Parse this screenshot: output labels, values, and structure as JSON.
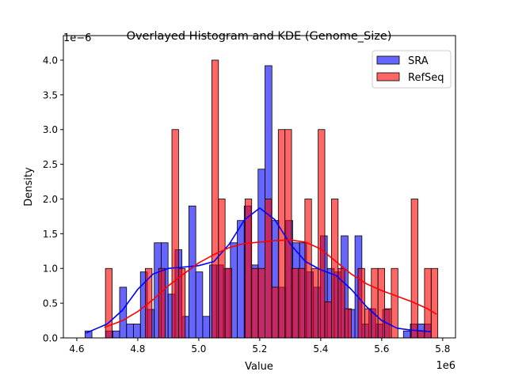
{
  "chart_data": {
    "type": "bar",
    "title": "Overlayed Histogram and KDE (Genome_Size)",
    "xlabel": "Value",
    "ylabel": "Density",
    "x_offset_label": "1e6",
    "y_offset_label": "1e−6",
    "xlim": [
      4.556,
      5.842
    ],
    "ylim": [
      0,
      4.353
    ],
    "xticks": [
      4.6,
      4.8,
      5.0,
      5.2,
      5.4,
      5.6,
      5.8
    ],
    "xtick_labels": [
      "4.6",
      "4.8",
      "5.0",
      "5.2",
      "5.4",
      "5.6",
      "5.8"
    ],
    "yticks": [
      0,
      0.5,
      1.0,
      1.5,
      2.0,
      2.5,
      3.0,
      3.5,
      4.0
    ],
    "ytick_labels": [
      "0.0",
      "0.5",
      "1.0",
      "1.5",
      "2.0",
      "2.5",
      "3.0",
      "3.5",
      "4.0"
    ],
    "grid": false,
    "legend_position": "upper right",
    "series": [
      {
        "name": "SRA",
        "color": "#0000ff",
        "bin_start": 4.627,
        "bin_width": 0.0227,
        "values": [
          0.1,
          0,
          0,
          0.1,
          0.1,
          0.73,
          0.2,
          0.2,
          0.95,
          0.41,
          1.37,
          1.37,
          0.63,
          1.27,
          0.31,
          1.9,
          0.95,
          0.31,
          1.05,
          1.05,
          1.0,
          1.37,
          1.69,
          1.9,
          1.05,
          2.43,
          3.92,
          1.69,
          0.73,
          1.69,
          1.37,
          1.37,
          0.95,
          0.73,
          1.47,
          1.0,
          0.95,
          1.47,
          0.41,
          1.47,
          0.2,
          0.42,
          0.2,
          0.41,
          0,
          0,
          0.1,
          0.2,
          0.2,
          0.2
        ],
        "kde": [
          [
            4.63,
            0.07
          ],
          [
            4.7,
            0.2
          ],
          [
            4.75,
            0.4
          ],
          [
            4.8,
            0.7
          ],
          [
            4.85,
            0.92
          ],
          [
            4.9,
            1.0
          ],
          [
            4.95,
            1.02
          ],
          [
            5.0,
            1.04
          ],
          [
            5.05,
            1.1
          ],
          [
            5.1,
            1.35
          ],
          [
            5.15,
            1.7
          ],
          [
            5.2,
            1.87
          ],
          [
            5.25,
            1.7
          ],
          [
            5.3,
            1.35
          ],
          [
            5.35,
            1.1
          ],
          [
            5.4,
            0.98
          ],
          [
            5.45,
            0.9
          ],
          [
            5.5,
            0.7
          ],
          [
            5.55,
            0.45
          ],
          [
            5.6,
            0.25
          ],
          [
            5.65,
            0.14
          ],
          [
            5.7,
            0.11
          ],
          [
            5.76,
            0.09
          ]
        ]
      },
      {
        "name": "RefSeq",
        "color": "#ff0000",
        "bin_start": 4.694,
        "bin_width": 0.0218,
        "values": [
          1.0,
          0,
          0,
          0,
          0,
          0,
          1.0,
          0,
          1.0,
          0,
          3.0,
          1.0,
          0,
          0,
          0,
          0,
          4.0,
          2.0,
          1.0,
          0,
          0,
          2.0,
          1.0,
          1.0,
          2.0,
          0.73,
          3.0,
          3.0,
          1.0,
          1.0,
          2.0,
          1.0,
          3.0,
          0.52,
          2.0,
          1.0,
          0.42,
          0,
          1.0,
          0.42,
          1.0,
          1.0,
          0.42,
          1.0,
          0,
          0,
          2.0,
          0.1,
          1.0,
          1.0
        ],
        "kde": [
          [
            4.69,
            0.15
          ],
          [
            4.75,
            0.25
          ],
          [
            4.8,
            0.38
          ],
          [
            4.85,
            0.55
          ],
          [
            4.9,
            0.75
          ],
          [
            4.95,
            0.92
          ],
          [
            5.0,
            1.08
          ],
          [
            5.05,
            1.2
          ],
          [
            5.1,
            1.3
          ],
          [
            5.15,
            1.36
          ],
          [
            5.2,
            1.38
          ],
          [
            5.25,
            1.4
          ],
          [
            5.3,
            1.41
          ],
          [
            5.35,
            1.38
          ],
          [
            5.4,
            1.28
          ],
          [
            5.45,
            1.1
          ],
          [
            5.5,
            0.92
          ],
          [
            5.55,
            0.78
          ],
          [
            5.6,
            0.68
          ],
          [
            5.65,
            0.6
          ],
          [
            5.7,
            0.52
          ],
          [
            5.75,
            0.42
          ],
          [
            5.78,
            0.34
          ]
        ]
      }
    ]
  }
}
